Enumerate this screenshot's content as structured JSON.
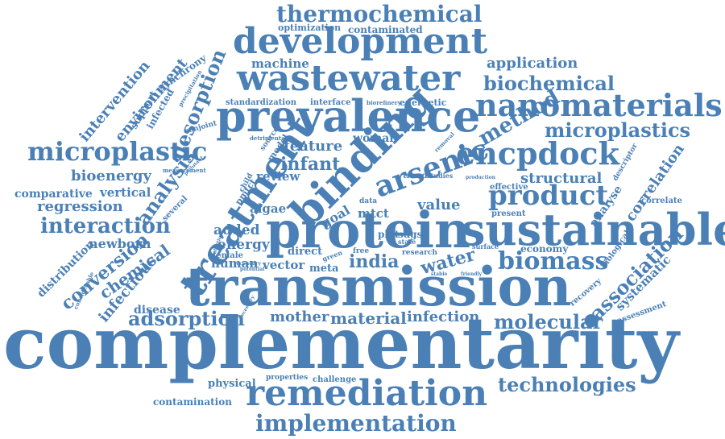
{
  "color": "#4a80b5",
  "words": {
    "complementarity": "complementarity",
    "transmission": "transmission",
    "protein": "protein",
    "sustainable": "sustainable",
    "prevalence": "prevalence",
    "wastewater": "wastewater",
    "development": "development",
    "binding": "binding",
    "treatment": "treatment",
    "remediation": "remediation",
    "nanomaterials": "nanomaterials",
    "encpdock": "encpdock",
    "microplastic": "microplastic",
    "thermochemical": "thermochemical",
    "implementation": "implementation",
    "arsenic": "arsenic",
    "product": "product",
    "biomass": "biomass",
    "biochemical": "biochemical",
    "microplastics": "microplastics",
    "method": "method",
    "technologies": "technologies",
    "adsorption": "adsorption",
    "molecular": "molecular",
    "association": "association",
    "interaction": "interaction",
    "analysis": "analysis",
    "desorption": "desorption",
    "india": "india",
    "water": "water",
    "infant": "infant",
    "feature": "feature",
    "bioenergy": "bioenergy",
    "regression": "regression",
    "structural": "structural",
    "correlation": "correlation",
    "conversion": "conversion",
    "chemical": "chemical",
    "infectious": "infectious",
    "mother": "mother",
    "material": "material",
    "infection": "infection",
    "application": "application",
    "machine": "machine",
    "intervention": "intervention",
    "environment": "environment",
    "newborn": "newborn",
    "comparative": "comparative",
    "vertical": "vertical",
    "distribution": "distribution",
    "value": "value",
    "energy": "energy",
    "added": "added",
    "human": "human",
    "vector": "vector",
    "algae": "algae",
    "review": "review",
    "mtct": "mtct",
    "goal": "goal",
    "disease": "disease",
    "contamination": "contamination",
    "physical": "physical",
    "properties": "properties",
    "challenge": "challenge",
    "systematic": "systematic",
    "analyse": "analyse",
    "economy": "economy",
    "recovery": "recovery",
    "biological": "biological",
    "assessment": "assessment",
    "optimization": "optimization",
    "contaminated": "contaminated",
    "synchrony": "synchrony",
    "standardization": "standardization",
    "interface": "interface",
    "biorefinery": "biorefinery",
    "energetic": "energetic",
    "support": "support",
    "infected": "infected",
    "conjoint": "conjoint",
    "woman": "woman",
    "meta": "meta",
    "direct": "direct",
    "effective": "effective",
    "present": "present",
    "correlate": "correlate",
    "descriptor": "descriptor",
    "several": "several",
    "pmtct": "pmtct",
    "plot": "plot",
    "sdgs": "sdgs",
    "trend": "trend",
    "studies": "studies",
    "data": "data",
    "female": "female",
    "free": "free",
    "research": "research",
    "surface": "surface",
    "state": "state",
    "model": "model",
    "source": "source",
    "child": "child",
    "measurement": "measurement",
    "detrimental": "detrimental",
    "considerable": "considerable",
    "precipitation": "precipitation",
    "production": "production",
    "potential": "potential",
    "secondary": "secondary",
    "necessary": "necessary",
    "friendly": "friendly",
    "green": "green",
    "stable": "stable",
    "detection": "detection",
    "pollutant": "pollutant",
    "removal": "removal"
  }
}
